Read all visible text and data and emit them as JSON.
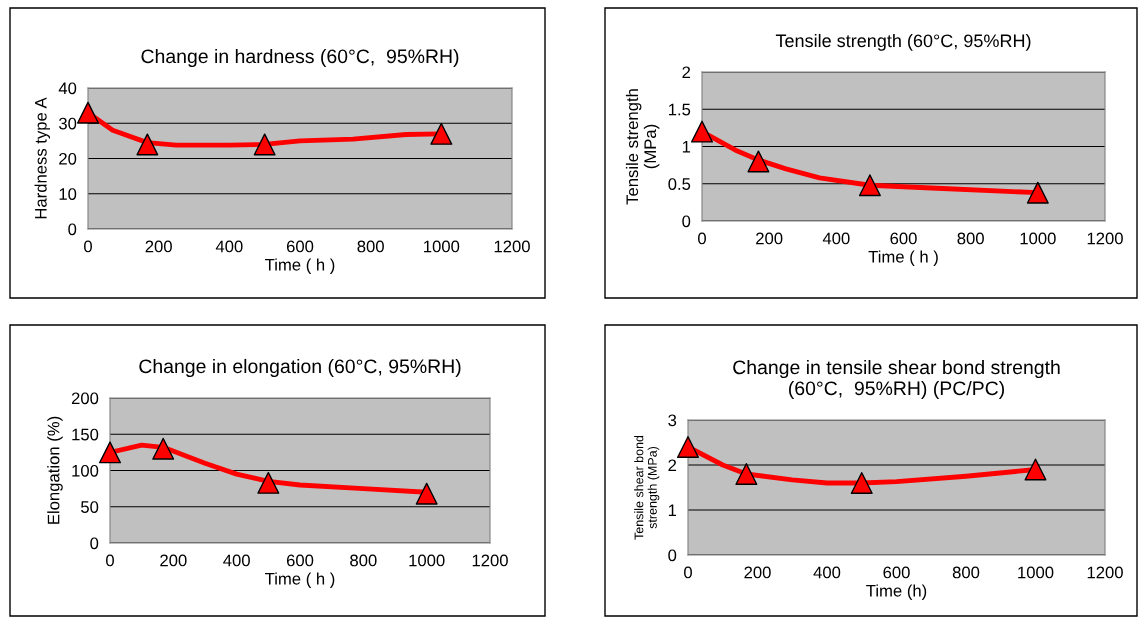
{
  "chart_data": [
    {
      "type": "line",
      "title": "Change in hardness (60°C,  95%RH)",
      "xlabel": "Time ( h )",
      "ylabel": "Hardness type A",
      "xlim": [
        0,
        1200
      ],
      "xticks": [
        0,
        200,
        400,
        600,
        800,
        1000,
        1200
      ],
      "ylim": [
        0,
        40
      ],
      "yticks": [
        0,
        10,
        20,
        30,
        40
      ],
      "grid": "y",
      "series": [
        {
          "color": "#ff0000",
          "marker": "none",
          "x": [
            0,
            70,
            168,
            250,
            400,
            500,
            600,
            750,
            900,
            1000
          ],
          "values": [
            33,
            28,
            24.5,
            23.8,
            23.8,
            24,
            25,
            25.5,
            26.8,
            27
          ]
        },
        {
          "type": "scatter",
          "color": "#ff0000",
          "marker": "triangle",
          "x": [
            0,
            168,
            500,
            1000
          ],
          "values": [
            33,
            24,
            24,
            27
          ]
        }
      ]
    },
    {
      "type": "line",
      "title": "Tensile strength (60°C, 95%RH)",
      "xlabel": "Time ( h )",
      "ylabel": "Tensile strength\n(MPa)",
      "xlim": [
        0,
        1200
      ],
      "xticks": [
        0,
        200,
        400,
        600,
        800,
        1000,
        1200
      ],
      "ylim": [
        0,
        2
      ],
      "yticks": [
        0,
        0.5,
        1,
        1.5,
        2
      ],
      "grid": "y",
      "series": [
        {
          "color": "#ff0000",
          "marker": "none",
          "x": [
            0,
            100,
            168,
            250,
            350,
            500,
            700,
            1000
          ],
          "values": [
            1.2,
            0.95,
            0.82,
            0.7,
            0.58,
            0.48,
            0.44,
            0.38
          ]
        },
        {
          "type": "scatter",
          "color": "#ff0000",
          "marker": "triangle",
          "x": [
            0,
            168,
            500,
            1000
          ],
          "values": [
            1.2,
            0.8,
            0.48,
            0.38
          ]
        }
      ]
    },
    {
      "type": "line",
      "title": "Change in elongation (60°C, 95%RH)",
      "xlabel": "Time ( h )",
      "ylabel": "Elongation (%)",
      "xlim": [
        0,
        1200
      ],
      "xticks": [
        0,
        200,
        400,
        600,
        800,
        1000,
        1200
      ],
      "ylim": [
        0,
        200
      ],
      "yticks": [
        0,
        50,
        100,
        150,
        200
      ],
      "grid": "y",
      "series": [
        {
          "color": "#ff0000",
          "marker": "none",
          "x": [
            0,
            100,
            168,
            300,
            400,
            500,
            600,
            800,
            1000
          ],
          "values": [
            125,
            135,
            132,
            110,
            95,
            85,
            80,
            75,
            70
          ]
        },
        {
          "type": "scatter",
          "color": "#ff0000",
          "marker": "triangle",
          "x": [
            0,
            168,
            500,
            1000
          ],
          "values": [
            125,
            130,
            83,
            68
          ]
        }
      ]
    },
    {
      "type": "line",
      "title": "Change in tensile shear bond strength\n(60°C,  95%RH) (PC/PC)",
      "xlabel": "Time (h)",
      "ylabel": "Tensile shear bond\nstrength (MPa)",
      "xlim": [
        0,
        1200
      ],
      "xticks": [
        0,
        200,
        400,
        600,
        800,
        1000,
        1200
      ],
      "ylim": [
        0,
        3
      ],
      "yticks": [
        0,
        1,
        2,
        3
      ],
      "grid": "y",
      "series": [
        {
          "color": "#ff0000",
          "marker": "none",
          "x": [
            0,
            100,
            168,
            300,
            400,
            500,
            600,
            800,
            1000
          ],
          "values": [
            2.4,
            2.0,
            1.8,
            1.67,
            1.6,
            1.6,
            1.63,
            1.75,
            1.9
          ]
        },
        {
          "type": "scatter",
          "color": "#ff0000",
          "marker": "triangle",
          "x": [
            0,
            168,
            500,
            1000
          ],
          "values": [
            2.4,
            1.8,
            1.6,
            1.9
          ]
        }
      ]
    }
  ]
}
